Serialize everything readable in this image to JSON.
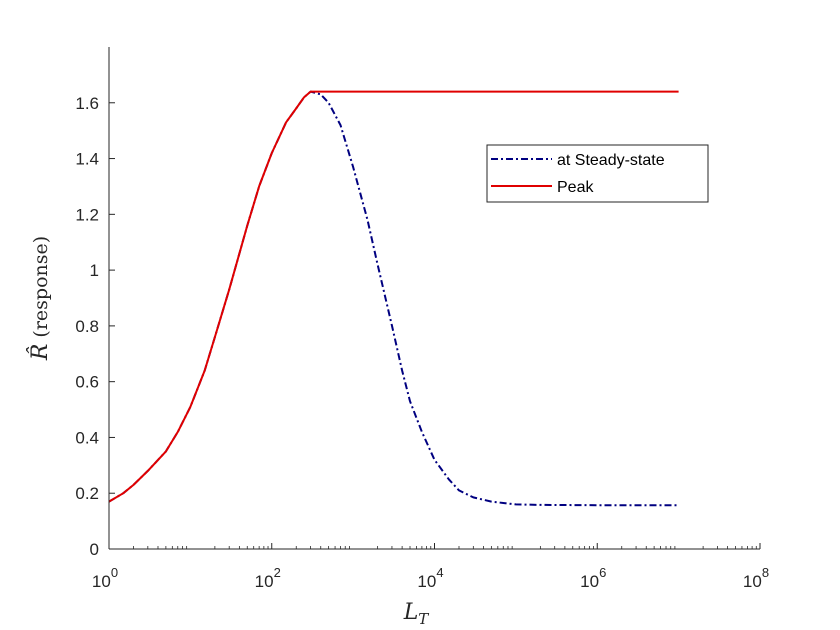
{
  "chart_data": {
    "type": "line",
    "title": "",
    "xlabel": "L",
    "xlabel_subscript": "T",
    "ylabel_symbol": "R̂",
    "ylabel_text": "(response)",
    "xscale": "log",
    "xlim": [
      1,
      100000000
    ],
    "ylim": [
      0,
      1.8
    ],
    "x_ticks": [
      {
        "value": 1,
        "base": "10",
        "exp": "0"
      },
      {
        "value": 100,
        "base": "10",
        "exp": "2"
      },
      {
        "value": 10000,
        "base": "10",
        "exp": "4"
      },
      {
        "value": 1000000,
        "base": "10",
        "exp": "6"
      },
      {
        "value": 100000000,
        "base": "10",
        "exp": "8"
      }
    ],
    "y_ticks": [
      0,
      0.2,
      0.4,
      0.6,
      0.8,
      1,
      1.2,
      1.4,
      1.6
    ],
    "y_tick_labels": [
      "0",
      "0.2",
      "0.4",
      "0.6",
      "0.8",
      "1",
      "1.2",
      "1.4",
      "1.6"
    ],
    "legend_position": "upper-right",
    "series": [
      {
        "name": "at Steady-state",
        "color": "#000080",
        "style": "dash-dot",
        "x": [
          1,
          1.5,
          2,
          3,
          5,
          7,
          10,
          15,
          20,
          30,
          50,
          70,
          100,
          150,
          200,
          250,
          300,
          400,
          500,
          700,
          1000,
          1500,
          2000,
          3000,
          4000,
          5000,
          7000,
          10000,
          15000,
          20000,
          30000,
          50000,
          70000,
          100000,
          200000,
          1000000,
          10000000
        ],
        "y": [
          0.17,
          0.2,
          0.23,
          0.28,
          0.35,
          0.42,
          0.51,
          0.64,
          0.76,
          0.93,
          1.16,
          1.3,
          1.42,
          1.53,
          1.58,
          1.62,
          1.64,
          1.63,
          1.6,
          1.52,
          1.37,
          1.18,
          1.02,
          0.8,
          0.64,
          0.53,
          0.42,
          0.32,
          0.25,
          0.21,
          0.185,
          0.17,
          0.165,
          0.16,
          0.158,
          0.157,
          0.157
        ]
      },
      {
        "name": "Peak",
        "color": "#e00000",
        "style": "solid",
        "x": [
          1,
          1.5,
          2,
          3,
          5,
          7,
          10,
          15,
          20,
          30,
          50,
          70,
          100,
          150,
          200,
          250,
          300,
          1000,
          10000,
          100000,
          1000000,
          10000000
        ],
        "y": [
          0.17,
          0.2,
          0.23,
          0.28,
          0.35,
          0.42,
          0.51,
          0.64,
          0.76,
          0.93,
          1.16,
          1.3,
          1.42,
          1.53,
          1.58,
          1.62,
          1.64,
          1.64,
          1.64,
          1.64,
          1.64,
          1.64
        ]
      }
    ]
  }
}
